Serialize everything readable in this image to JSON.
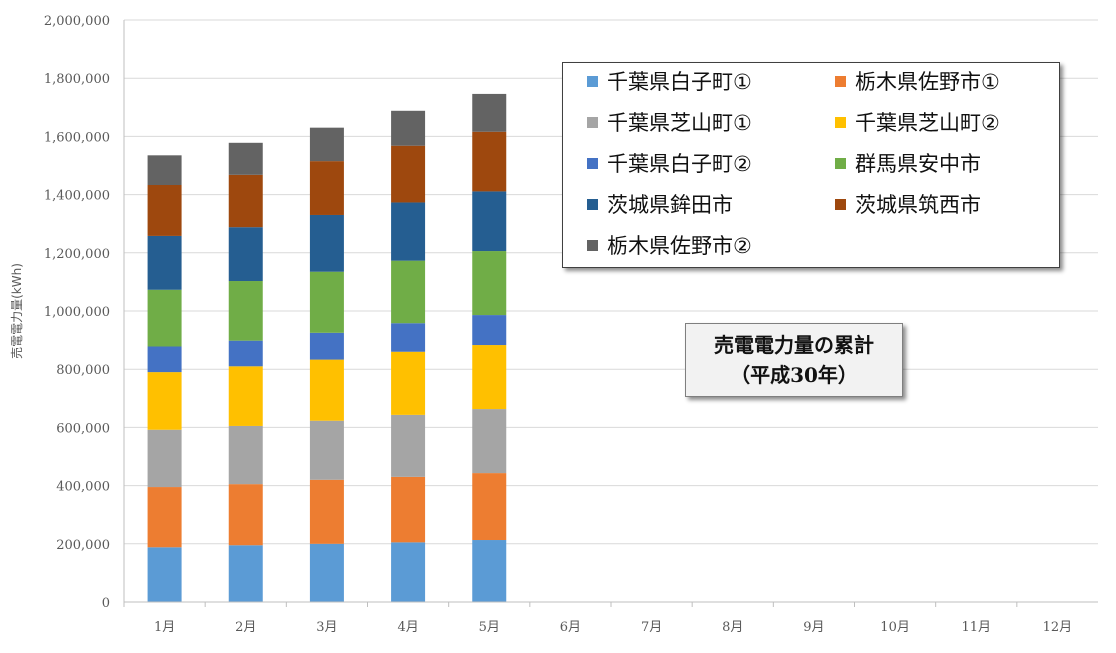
{
  "chart_data": {
    "type": "bar",
    "stacked": true,
    "title": "売電電力量の累計",
    "subtitle": "（平成30年）",
    "ylabel": "売電電力量(kWh)",
    "xlabel": "",
    "ylim": [
      0,
      2000000
    ],
    "yticks": [
      "0",
      "200,000",
      "400,000",
      "600,000",
      "800,000",
      "1,000,000",
      "1,200,000",
      "1,400,000",
      "1,600,000",
      "1,800,000",
      "2,000,000"
    ],
    "ytick_values": [
      0,
      200000,
      400000,
      600000,
      800000,
      1000000,
      1200000,
      1400000,
      1600000,
      1800000,
      2000000
    ],
    "categories": [
      "1月",
      "2月",
      "3月",
      "4月",
      "5月",
      "6月",
      "7月",
      "8月",
      "9月",
      "10月",
      "11月",
      "12月"
    ],
    "grid": true,
    "legend_position": "top-right",
    "series": [
      {
        "name": "千葉県白子町①",
        "color": "#5b9bd5",
        "values": [
          188000,
          195000,
          200000,
          205000,
          213000,
          null,
          null,
          null,
          null,
          null,
          null,
          null
        ]
      },
      {
        "name": "栃木県佐野市①",
        "color": "#ed7d31",
        "values": [
          207000,
          210000,
          220000,
          225000,
          230000,
          null,
          null,
          null,
          null,
          null,
          null,
          null
        ]
      },
      {
        "name": "千葉県芝山町①",
        "color": "#a5a5a5",
        "values": [
          197000,
          200000,
          203000,
          213000,
          220000,
          null,
          null,
          null,
          null,
          null,
          null,
          null
        ]
      },
      {
        "name": "千葉県芝山町②",
        "color": "#ffc000",
        "values": [
          198000,
          205000,
          210000,
          217000,
          220000,
          null,
          null,
          null,
          null,
          null,
          null,
          null
        ]
      },
      {
        "name": "千葉県白子町②",
        "color": "#4472c4",
        "values": [
          88000,
          88000,
          92000,
          98000,
          103000,
          null,
          null,
          null,
          null,
          null,
          null,
          null
        ]
      },
      {
        "name": "群馬県安中市",
        "color": "#70ad47",
        "values": [
          195000,
          205000,
          210000,
          215000,
          220000,
          null,
          null,
          null,
          null,
          null,
          null,
          null
        ]
      },
      {
        "name": "茨城県鉾田市",
        "color": "#255e91",
        "values": [
          185000,
          185000,
          195000,
          200000,
          205000,
          null,
          null,
          null,
          null,
          null,
          null,
          null
        ]
      },
      {
        "name": "茨城県筑西市",
        "color": "#9e480e",
        "values": [
          175000,
          180000,
          185000,
          195000,
          205000,
          null,
          null,
          null,
          null,
          null,
          null,
          null
        ]
      },
      {
        "name": "栃木県佐野市②",
        "color": "#636363",
        "values": [
          102000,
          110000,
          115000,
          120000,
          130000,
          null,
          null,
          null,
          null,
          null,
          null,
          null
        ]
      }
    ]
  }
}
